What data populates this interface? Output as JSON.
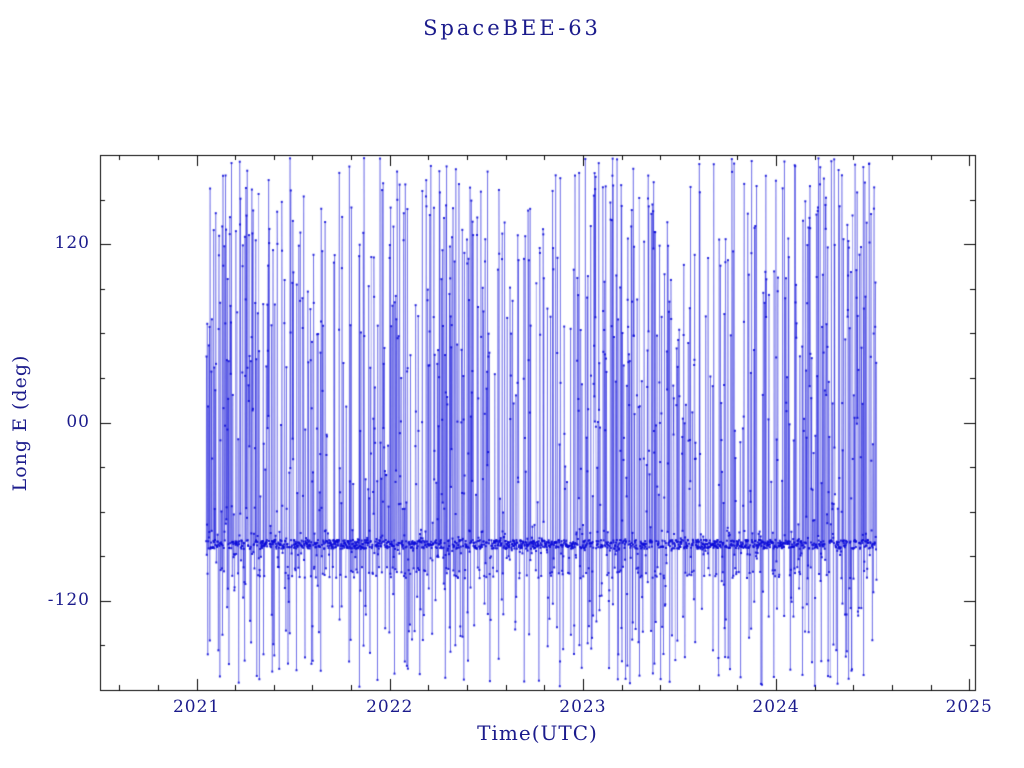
{
  "styles": {
    "text_color": "#1b1b8c",
    "frame_color": "#000000",
    "background": "#ffffff",
    "data_color": "#0b0bd8"
  },
  "chart_data": {
    "type": "line-scatter",
    "title": "SpaceBEE-63",
    "xlabel": "Time(UTC)",
    "ylabel": "Long E (deg)",
    "xlim": [
      2020.5,
      2025.03
    ],
    "ylim": [
      -180,
      180
    ],
    "x_tick_values": [
      2021,
      2022,
      2023,
      2024,
      2025
    ],
    "x_tick_labels": [
      "2021",
      "2022",
      "2023",
      "2024",
      "2025"
    ],
    "x_minor_step": 0.2,
    "y_tick_values": [
      -120,
      0,
      120
    ],
    "y_tick_labels": [
      "-120",
      "00",
      "120"
    ],
    "y_minor_step": 30,
    "grid": false,
    "legend": "none",
    "series": [
      {
        "name": "SpaceBEE-63 longitude east",
        "color": "#0b0bd8",
        "marker": "square",
        "marker_size": 2,
        "time_start": 2021.05,
        "time_end": 2024.52,
        "n_points": 2600,
        "band_center": -82,
        "band_spread": 6,
        "secondary_band_offset": -15,
        "full_range": [
          -178,
          178
        ],
        "seed": 42,
        "description": "Dense noisy longitude track: persistent horizontal band near -82 deg with frequent excursions spanning the full -180..180 range, appearing as dense vertical blue lines from early 2021 to mid 2024."
      }
    ]
  }
}
